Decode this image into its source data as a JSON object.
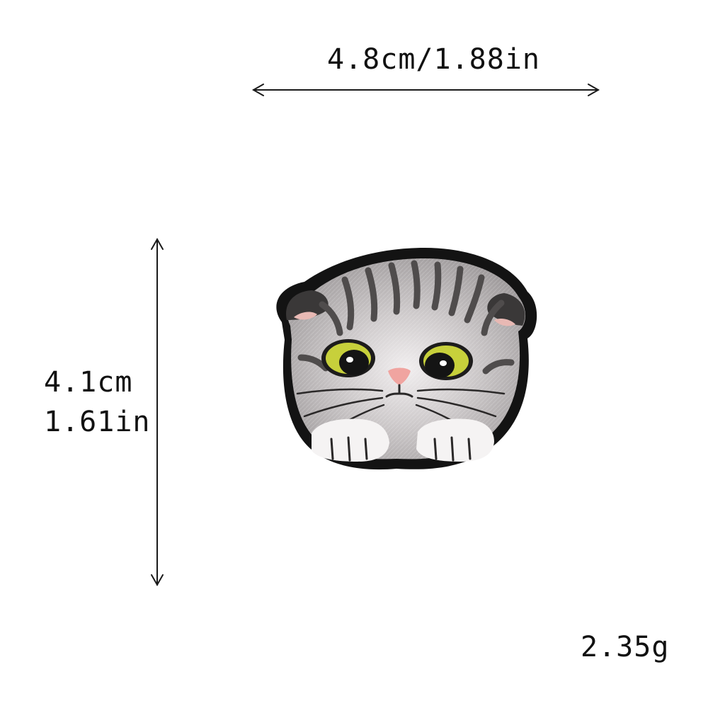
{
  "dimensions": {
    "width": "4.8cm/1.88in",
    "height_cm": "4.1cm",
    "height_in": "1.61in",
    "weight": "2.35g"
  },
  "product": {
    "image": "embroidered-scottish-fold-cat-face-patch",
    "colors": {
      "border": "#111111",
      "fur": "#a9a5a6",
      "fur_light": "#ece9ea",
      "stripe": "#4b4848",
      "eye": "#c5cf3a",
      "nose": "#f1a6a3"
    }
  }
}
